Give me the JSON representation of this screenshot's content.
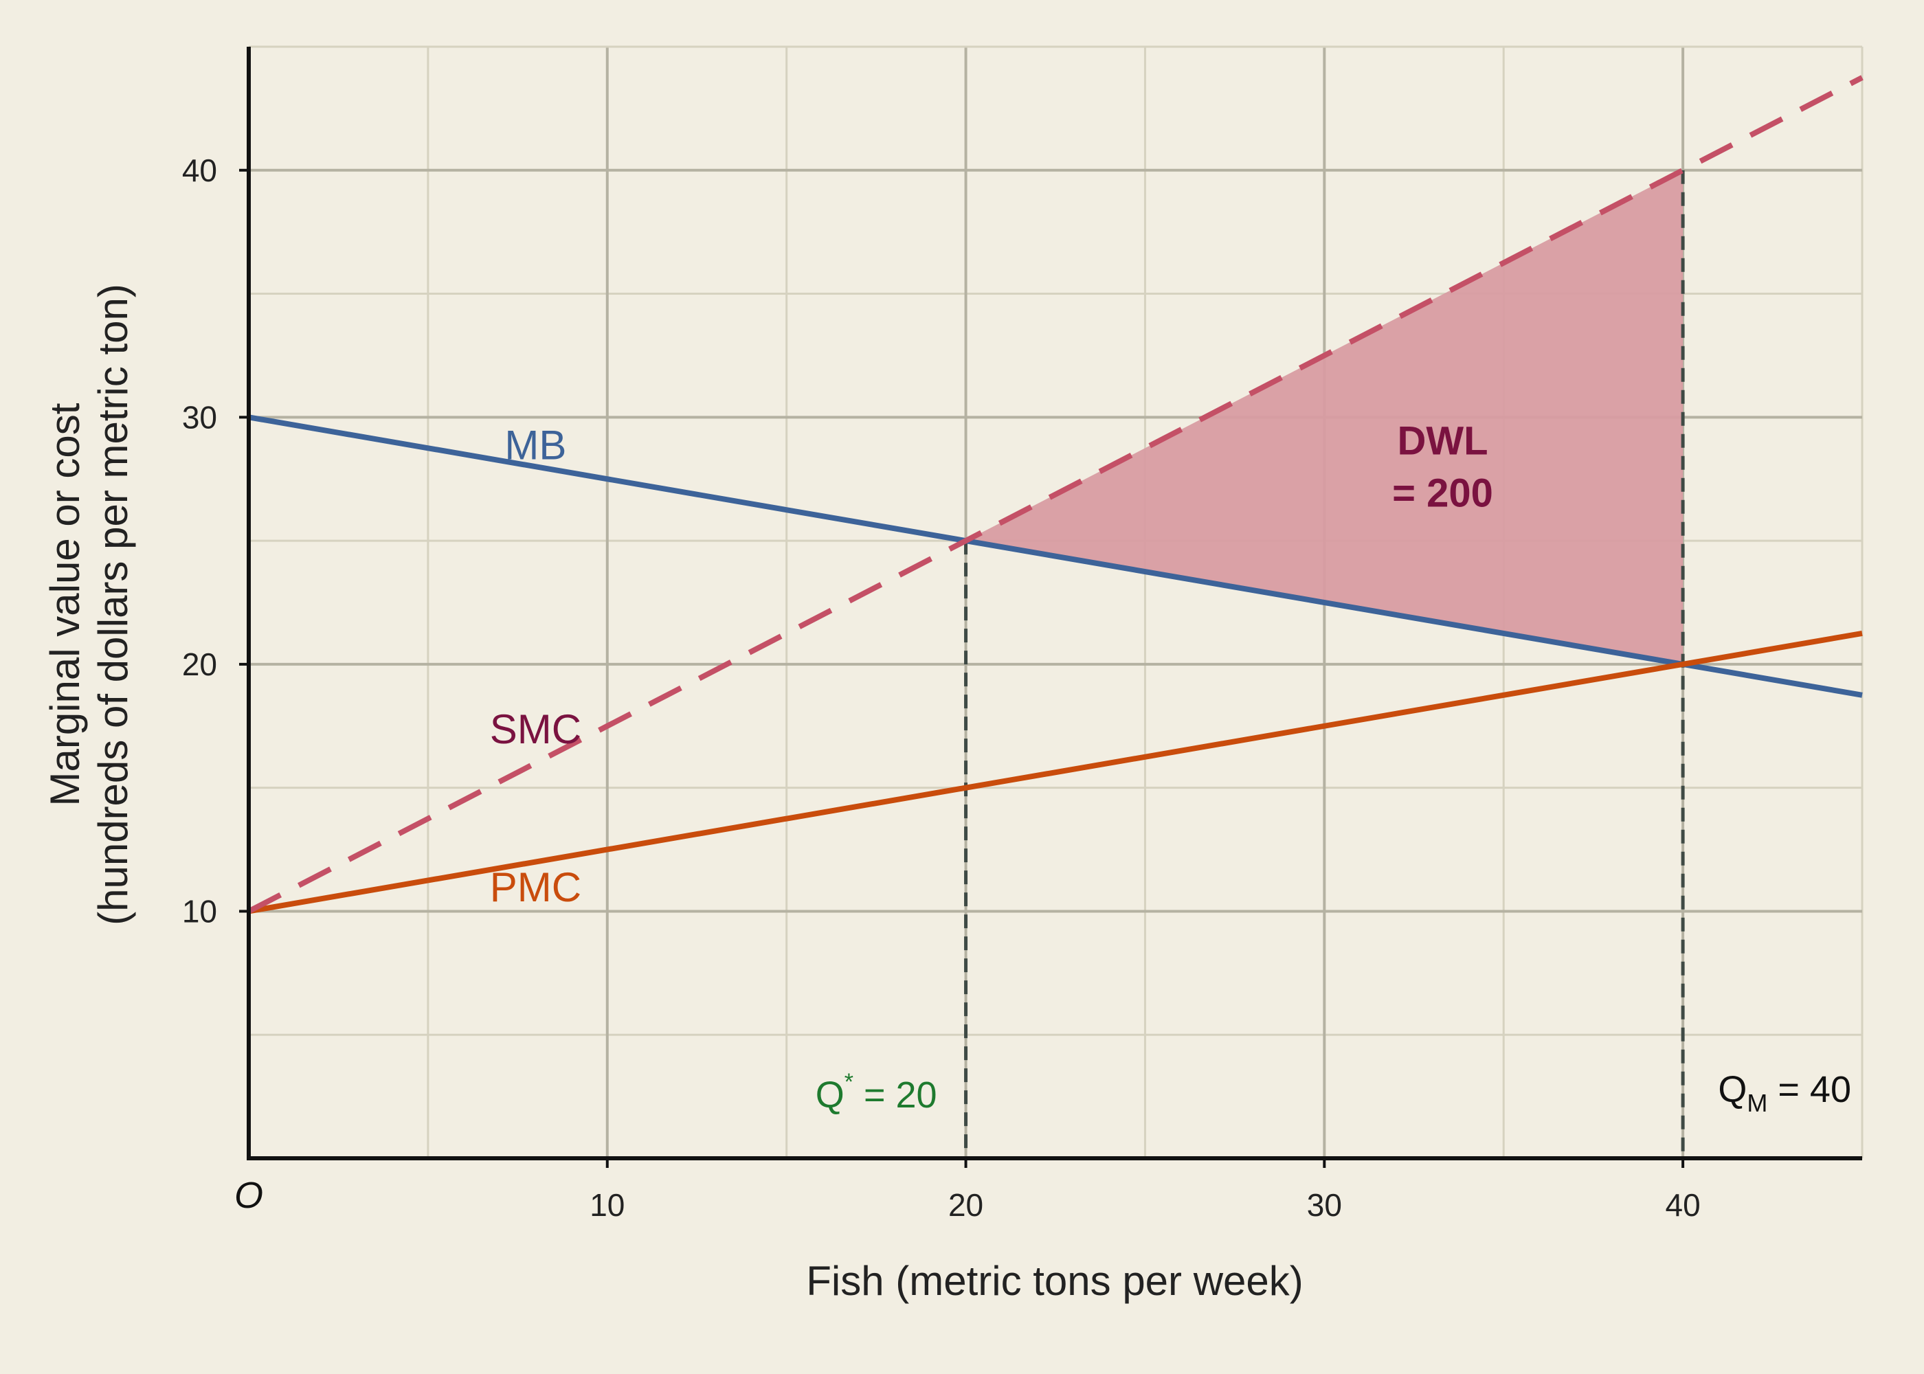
{
  "chart_data": {
    "type": "line",
    "title": "",
    "xlabel": "Fish (metric tons per week)",
    "ylabel_lines": [
      "Marginal value or cost",
      "(hundreds of dollars per metric ton)"
    ],
    "xlim": [
      0,
      45
    ],
    "ylim": [
      0,
      45
    ],
    "x_ticks": [
      10,
      20,
      30,
      40
    ],
    "y_ticks": [
      10,
      20,
      30,
      40
    ],
    "x_minor_grid": [
      5,
      15,
      25,
      35,
      45
    ],
    "y_minor_grid": [
      5,
      15,
      25,
      35
    ],
    "grid": true,
    "origin_label": "O",
    "series": [
      {
        "name": "MB",
        "color": "#3d6399",
        "style": "solid",
        "x": [
          0,
          45
        ],
        "y": [
          30,
          18.75
        ],
        "label_x": 8,
        "label_y": 28.3
      },
      {
        "name": "PMC",
        "color": "#c94c0c",
        "style": "solid",
        "x": [
          0,
          45
        ],
        "y": [
          10,
          21.25
        ],
        "label_x": 8,
        "label_y": 10.4
      },
      {
        "name": "SMC",
        "color": "#c45066",
        "label_color": "#7a1240",
        "style": "dashed",
        "x": [
          0,
          45
        ],
        "y": [
          10,
          43.75
        ],
        "label_x": 8,
        "label_y": 16.8
      }
    ],
    "shaded_region": {
      "name": "DWL",
      "value_text": "= 200",
      "color": "#d89ca2",
      "label_color": "#7a1240",
      "points": [
        [
          20,
          25
        ],
        [
          40,
          40
        ],
        [
          40,
          20
        ]
      ],
      "label_x": 33.3,
      "label_y": 28.5
    },
    "reference_lines": [
      {
        "x": 20,
        "y_top": 25,
        "label_main": "Q",
        "label_sup": "*",
        "label_rest": " = 20",
        "label_color": "#1e7a2e"
      },
      {
        "x": 40,
        "y_top": 40,
        "label_main": "Q",
        "label_sub": "M",
        "label_rest": " = 40",
        "label_color": "#111111"
      }
    ]
  }
}
